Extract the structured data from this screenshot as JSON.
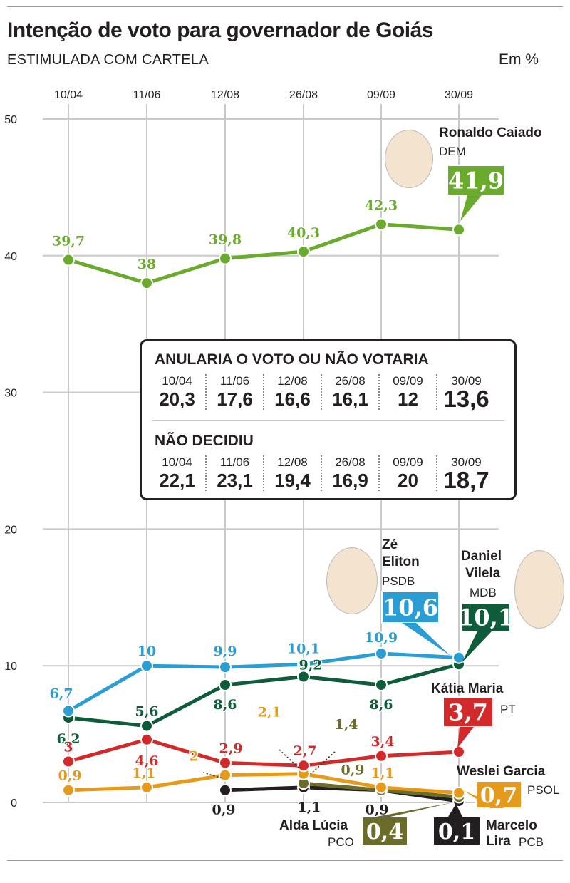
{
  "header": {
    "title": "Intenção de voto para governador de Goiás",
    "subtitle": "ESTIMULADA COM CARTELA",
    "unit": "Em %"
  },
  "colors": {
    "caiado": "#6aab2e",
    "ze": "#2a9dd4",
    "daniel": "#0e5c3a",
    "katia": "#d22a2a",
    "weslei": "#e69a1c",
    "alda": "#6b6b2a",
    "marcelo": "#231f20",
    "grid": "#c9c9c9",
    "text": "#231f20"
  },
  "chart_data": {
    "type": "line",
    "title": "Intenção de voto para governador de Goiás",
    "subtitle": "ESTIMULADA COM CARTELA",
    "ylabel": "Em %",
    "categories": [
      "10/04",
      "11/06",
      "12/08",
      "26/08",
      "09/09",
      "30/09"
    ],
    "y_ticks": [
      "0",
      "10",
      "20",
      "30",
      "40",
      "50"
    ],
    "ylim": [
      0,
      50
    ],
    "grid": true,
    "series": [
      {
        "key": "caiado",
        "name": "Ronaldo Caiado",
        "party": "DEM",
        "values": [
          39.7,
          38,
          39.8,
          40.3,
          42.3,
          41.9
        ],
        "labels": [
          "39,7",
          "38",
          "39,8",
          "40,3",
          "42,3",
          "41,9"
        ]
      },
      {
        "key": "ze",
        "name_line1": "Zé",
        "name_line2": "Eliton",
        "party": "PSDB",
        "values": [
          6.7,
          10,
          9.9,
          10.1,
          10.9,
          10.6
        ],
        "labels": [
          "6,7",
          "10",
          "9,9",
          "10,1",
          "10,9",
          "10,6"
        ]
      },
      {
        "key": "daniel",
        "name_line1": "Daniel",
        "name_line2": "Vilela",
        "party": "MDB",
        "values": [
          6.2,
          5.6,
          8.6,
          9.2,
          8.6,
          10.1
        ],
        "labels": [
          "6,2",
          "5,6",
          "8,6",
          "9,2",
          "8,6",
          "10,1"
        ]
      },
      {
        "key": "katia",
        "name": "Kátia Maria",
        "party": "PT",
        "values": [
          3,
          4.6,
          2.9,
          2.7,
          3.4,
          3.7
        ],
        "labels": [
          "3",
          "4,6",
          "2,9",
          "2,7",
          "3,4",
          "3,7"
        ]
      },
      {
        "key": "weslei",
        "name": "Weslei Garcia",
        "party": "PSOL",
        "values": [
          0.9,
          1.1,
          2,
          2.1,
          1.1,
          0.7
        ],
        "labels": [
          "0,9",
          "1,1",
          "2",
          "2,1",
          "1,1",
          "0,7"
        ]
      },
      {
        "key": "alda",
        "name": "Alda Lúcia",
        "party": "PCO",
        "values": [
          null,
          null,
          null,
          1.4,
          0.9,
          0.4
        ],
        "labels": [
          "",
          "",
          "",
          "1,4",
          "0,9",
          "0,4"
        ]
      },
      {
        "key": "marcelo",
        "name_line1": "Marcelo",
        "name_line2": "Lira",
        "party": "PCB",
        "values": [
          null,
          null,
          0.9,
          1.1,
          0.9,
          0.1
        ],
        "labels": [
          "",
          "",
          "0,9",
          "1,1",
          "0,9",
          "0,1"
        ]
      }
    ]
  },
  "box": {
    "section1": {
      "title": "ANULARIA O VOTO OU NÃO VOTARIA",
      "dates": [
        "10/04",
        "11/06",
        "12/08",
        "26/08",
        "09/09",
        "30/09"
      ],
      "values": [
        "20,3",
        "17,6",
        "16,6",
        "16,1",
        "12",
        "13,6"
      ]
    },
    "section2": {
      "title": "NÃO DECIDIU",
      "dates": [
        "10/04",
        "11/06",
        "12/08",
        "26/08",
        "09/09",
        "30/09"
      ],
      "values": [
        "22,1",
        "23,1",
        "19,4",
        "16,9",
        "20",
        "18,7"
      ]
    }
  }
}
